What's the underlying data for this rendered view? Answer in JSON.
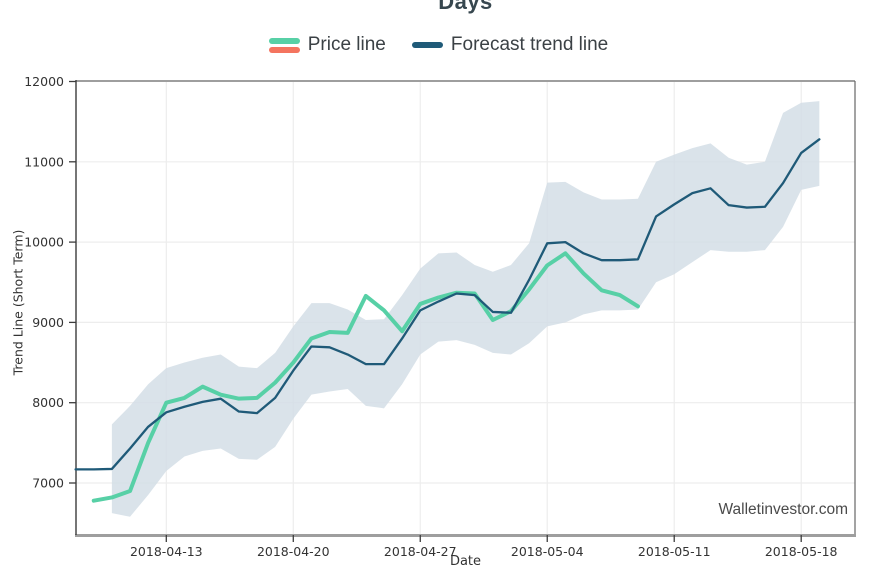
{
  "title": "Days",
  "watermark": "Walletinvestor.com",
  "legend": {
    "items": [
      {
        "label": "Price line",
        "colors": [
          "#57d0a6",
          "#f4745f"
        ]
      },
      {
        "label": "Forecast trend line",
        "colors": [
          "#1f5a78"
        ]
      }
    ]
  },
  "colors": {
    "band": "#d2dde5",
    "grid": "#ededed",
    "spine_dark": "#3c3c3c",
    "spine_light": "#9e9e9e",
    "tick_text": "#333333",
    "title_text": "#37474f",
    "watermark_text": "#4a4a4a"
  },
  "chart_data": {
    "type": "line",
    "title": "Days",
    "xlabel": "Date",
    "ylabel": "Trend Line (Short Term)",
    "grid": true,
    "legend_position": "top",
    "ylim": [
      6370,
      12000
    ],
    "yticks": [
      7000,
      8000,
      9000,
      10000,
      11000,
      12000
    ],
    "xticks": [
      "2018-04-13",
      "2018-04-20",
      "2018-04-27",
      "2018-05-04",
      "2018-05-11",
      "2018-05-18"
    ],
    "dates": [
      "2018-04-08",
      "2018-04-09",
      "2018-04-10",
      "2018-04-11",
      "2018-04-12",
      "2018-04-13",
      "2018-04-14",
      "2018-04-15",
      "2018-04-16",
      "2018-04-17",
      "2018-04-18",
      "2018-04-19",
      "2018-04-20",
      "2018-04-21",
      "2018-04-22",
      "2018-04-23",
      "2018-04-24",
      "2018-04-25",
      "2018-04-26",
      "2018-04-27",
      "2018-04-28",
      "2018-04-29",
      "2018-04-30",
      "2018-05-01",
      "2018-05-02",
      "2018-05-03",
      "2018-05-04",
      "2018-05-05",
      "2018-05-06",
      "2018-05-07",
      "2018-05-08",
      "2018-05-09",
      "2018-05-10",
      "2018-05-11",
      "2018-05-12",
      "2018-05-13",
      "2018-05-14",
      "2018-05-15",
      "2018-05-16",
      "2018-05-17",
      "2018-05-18",
      "2018-05-19"
    ],
    "series": [
      {
        "name": "Price line",
        "color": "#57d0a6",
        "values": [
          null,
          6780,
          6820,
          6900,
          7500,
          8000,
          8060,
          8200,
          8100,
          8050,
          8060,
          8250,
          8500,
          8800,
          8880,
          8870,
          9330,
          9150,
          8890,
          9230,
          9310,
          9370,
          9360,
          9030,
          9140,
          9410,
          9710,
          9860,
          9610,
          9400,
          9340,
          9200,
          null,
          null,
          null,
          null,
          null,
          null,
          null,
          null,
          null,
          null
        ]
      },
      {
        "name": "Forecast trend line",
        "color": "#1f5a78",
        "values": [
          7170,
          7170,
          7175,
          7430,
          7700,
          7880,
          7950,
          8010,
          8050,
          7890,
          7870,
          8060,
          8400,
          8700,
          8690,
          8600,
          8480,
          8480,
          8800,
          9150,
          9260,
          9360,
          9340,
          9130,
          9120,
          9530,
          9985,
          10000,
          9860,
          9775,
          9775,
          9785,
          10320,
          10470,
          10610,
          10670,
          10460,
          10430,
          10440,
          10735,
          11110,
          11280
        ]
      }
    ],
    "band": {
      "name": "forecast confidence band",
      "color": "#d2dde5",
      "upper": [
        null,
        null,
        7730,
        7960,
        8230,
        8430,
        8500,
        8560,
        8600,
        8450,
        8430,
        8620,
        8950,
        9240,
        9240,
        9160,
        9030,
        9040,
        9340,
        9670,
        9860,
        9870,
        9715,
        9630,
        9715,
        9985,
        10740,
        10750,
        10620,
        10530,
        10530,
        10540,
        11000,
        11090,
        11170,
        11230,
        11050,
        10965,
        11000,
        11610,
        11735,
        11755
      ],
      "lower": [
        null,
        null,
        6625,
        6580,
        6850,
        7150,
        7330,
        7400,
        7430,
        7300,
        7290,
        7450,
        7800,
        8100,
        8140,
        8170,
        7960,
        7930,
        8230,
        8600,
        8760,
        8780,
        8720,
        8620,
        8600,
        8740,
        8950,
        9000,
        9100,
        9150,
        9150,
        9160,
        9500,
        9600,
        9750,
        9900,
        9880,
        9880,
        9900,
        10190,
        10650,
        10700
      ]
    }
  }
}
